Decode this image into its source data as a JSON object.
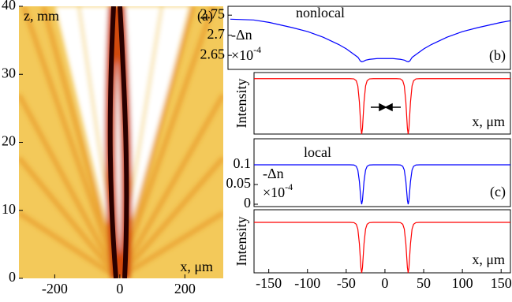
{
  "chart_data": [
    {
      "type": "heatmap",
      "xlim": [
        -310,
        318
      ],
      "ylim": [
        0,
        40
      ],
      "xticks": [
        -200,
        0,
        200
      ],
      "yticks": [
        0,
        10,
        20,
        30,
        40
      ],
      "ylabel": "z, mm",
      "xlabel": "x, μm",
      "panel": "(a)"
    },
    {
      "type": "line",
      "label": "nonlocal",
      "ylabel": "-Δn",
      "scale": "×10",
      "scale_exponent": "-4",
      "panel": "(b)",
      "xlim": [
        -203,
        162
      ],
      "ylim": [
        2.615,
        2.772
      ],
      "yticks": [
        2.65,
        2.7,
        2.75
      ],
      "x": [
        -200,
        -170,
        -150,
        -120,
        -100,
        -80,
        -60,
        -50,
        -40,
        -35,
        -32,
        -30,
        -28,
        -25,
        -20,
        -10,
        0,
        10,
        20,
        25,
        28,
        30,
        32,
        35,
        40,
        50,
        60,
        80,
        100,
        120,
        150,
        162
      ],
      "series": [
        {
          "color": "#0000ff",
          "values": [
            2.74,
            2.738,
            2.732,
            2.719,
            2.709,
            2.695,
            2.677,
            2.666,
            2.652,
            2.645,
            2.636,
            2.634,
            2.635,
            2.638,
            2.64,
            2.642,
            2.642,
            2.642,
            2.64,
            2.638,
            2.635,
            2.634,
            2.636,
            2.645,
            2.652,
            2.666,
            2.677,
            2.695,
            2.709,
            2.719,
            2.732,
            2.736
          ]
        }
      ]
    },
    {
      "type": "line",
      "ylabel": "Intensity",
      "xlabel": "x, μm",
      "xlim": [
        -169,
        162
      ],
      "ylim": [
        0,
        1.11
      ],
      "x": [
        -169,
        -60,
        -45,
        -40,
        -37,
        -35,
        -33,
        -31,
        -30,
        -29,
        -27,
        -25,
        -23,
        -20,
        -15,
        0,
        15,
        20,
        23,
        25,
        27,
        29,
        30,
        31,
        33,
        35,
        37,
        40,
        45,
        60,
        162
      ],
      "series": [
        {
          "color": "#ff0000",
          "values": [
            1,
            1,
            1,
            0.995,
            0.962,
            0.868,
            0.58,
            0.103,
            0,
            0.103,
            0.58,
            0.868,
            0.962,
            0.995,
            1,
            1,
            1,
            0.995,
            0.962,
            0.868,
            0.58,
            0.103,
            0,
            0.103,
            0.58,
            0.868,
            0.962,
            0.995,
            1,
            1,
            1
          ]
        }
      ]
    },
    {
      "type": "line",
      "label": "local",
      "ylabel": "-Δn",
      "scale": "×10",
      "scale_exponent": "-4",
      "panel": "(c)",
      "xlim": [
        -169,
        162
      ],
      "ylim": [
        -0.006,
        0.166
      ],
      "yticks": [
        0,
        0.05,
        0.1
      ],
      "x": [
        -169,
        -60,
        -45,
        -40,
        -37,
        -35,
        -33,
        -31,
        -30,
        -29,
        -27,
        -25,
        -23,
        -20,
        -15,
        0,
        15,
        20,
        23,
        25,
        27,
        29,
        30,
        31,
        33,
        35,
        37,
        40,
        45,
        60,
        162
      ],
      "series": [
        {
          "color": "#0000ff",
          "values": [
            0.1,
            0.1,
            0.1,
            0.0995,
            0.0962,
            0.0868,
            0.058,
            0.0103,
            0,
            0.0103,
            0.058,
            0.0868,
            0.0962,
            0.0995,
            0.1,
            0.1,
            0.1,
            0.0995,
            0.0962,
            0.0868,
            0.058,
            0.0103,
            0,
            0.0103,
            0.058,
            0.0868,
            0.0962,
            0.0995,
            0.1,
            0.1,
            0.1
          ]
        }
      ]
    },
    {
      "type": "line",
      "ylabel": "Intensity",
      "xlabel": "x, μm",
      "xlim": [
        -169,
        162
      ],
      "ylim": [
        0,
        1.25
      ],
      "xticks": [
        -150,
        -100,
        -50,
        0,
        50,
        100,
        150
      ],
      "x": [
        -169,
        -60,
        -45,
        -40,
        -37,
        -35,
        -33,
        -31,
        -30,
        -29,
        -27,
        -25,
        -23,
        -20,
        -15,
        0,
        15,
        20,
        23,
        25,
        27,
        29,
        30,
        31,
        33,
        35,
        37,
        40,
        45,
        60,
        162
      ],
      "series": [
        {
          "color": "#ff0000",
          "values": [
            1,
            1,
            1,
            0.995,
            0.962,
            0.868,
            0.58,
            0.103,
            0,
            0.103,
            0.58,
            0.868,
            0.962,
            0.995,
            1,
            1,
            1,
            0.995,
            0.962,
            0.868,
            0.58,
            0.103,
            0,
            0.103,
            0.58,
            0.868,
            0.962,
            0.995,
            1,
            1,
            1
          ]
        }
      ]
    }
  ]
}
